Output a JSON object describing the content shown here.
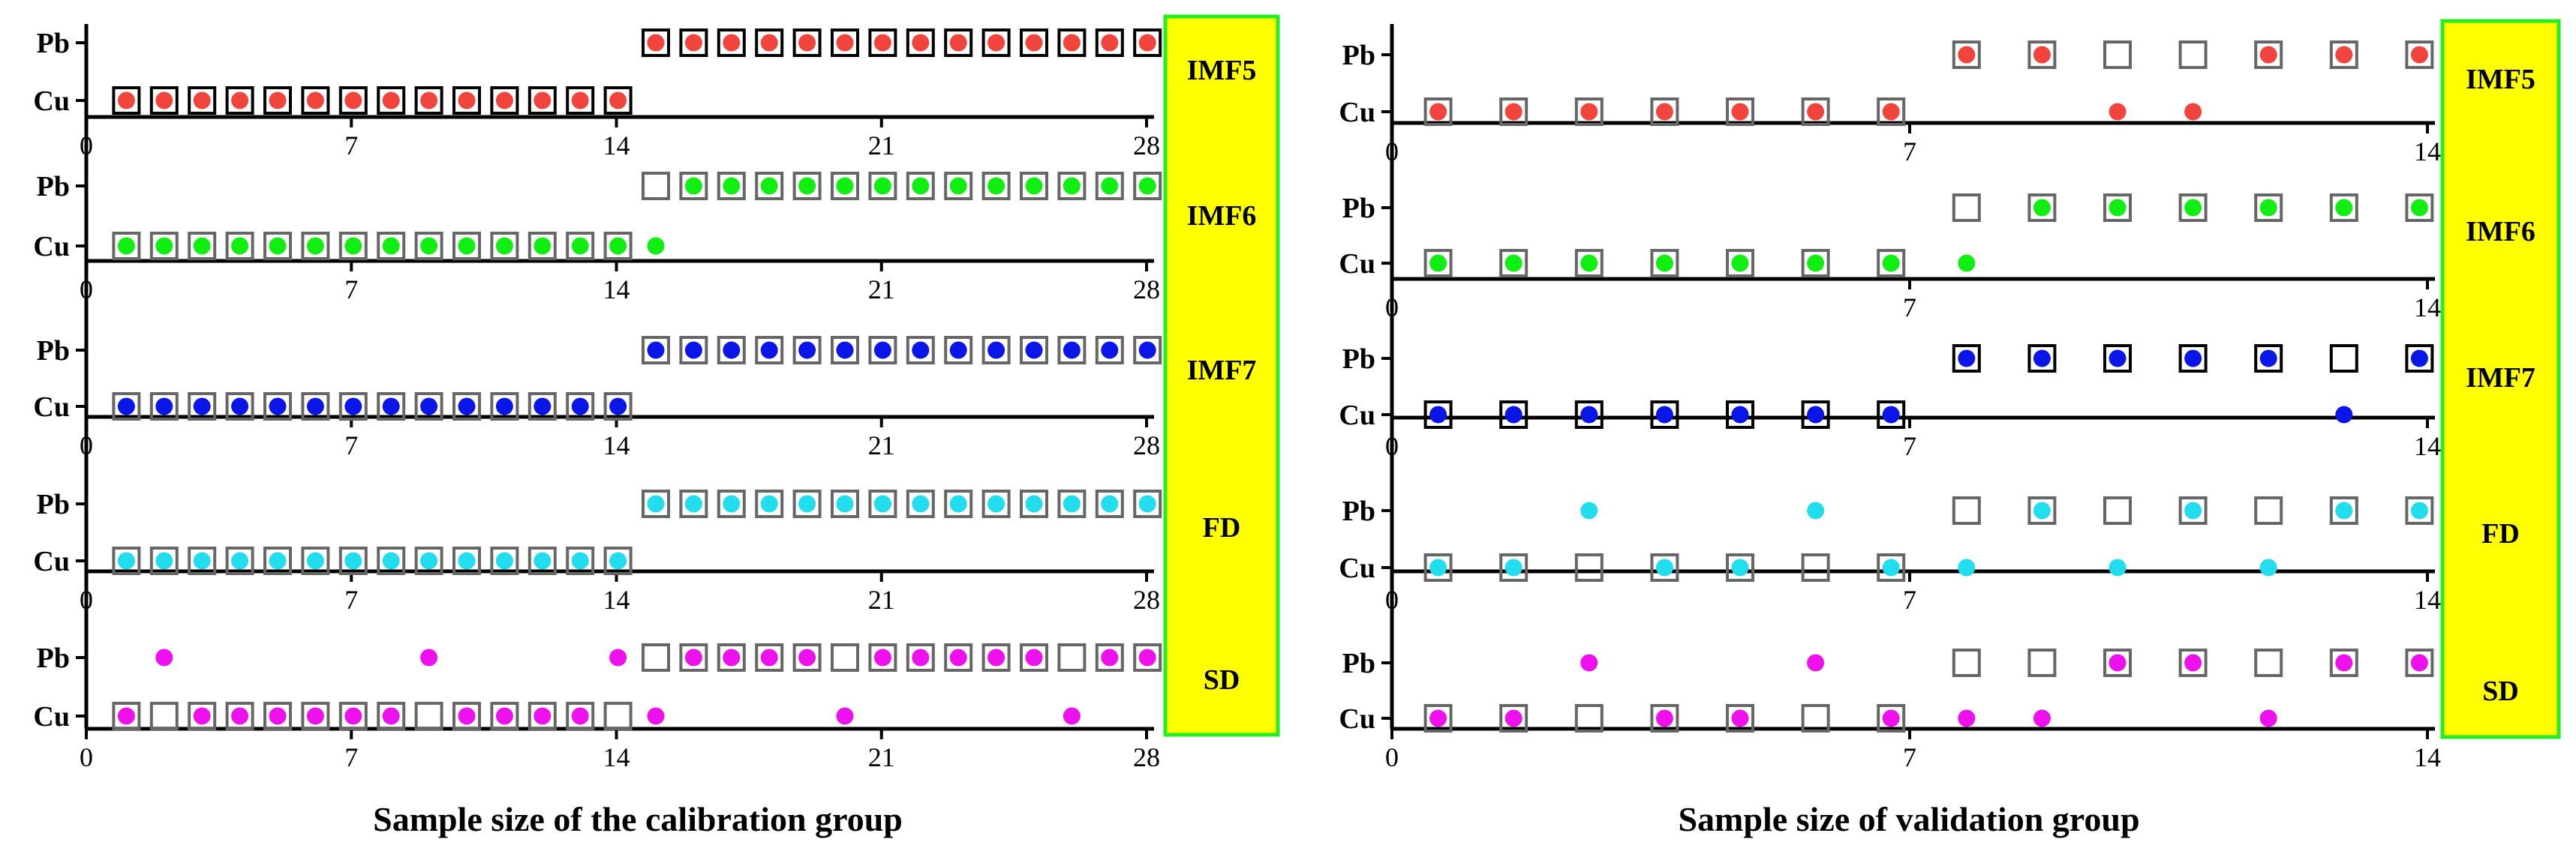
{
  "chart_data": [
    {
      "type": "scatter",
      "id": "calibration",
      "xlabel": "Sample size of the calibration group",
      "xlim": [
        0,
        28
      ],
      "xticks": [
        0,
        7,
        14,
        21,
        28
      ],
      "ycategories": [
        "Cu",
        "Pb"
      ],
      "legend_border_color": "#000000",
      "panels": [
        {
          "label": "IMF5",
          "color": "#f0443c",
          "marker_box_color": "#000000",
          "predicted": {
            "Cu": [
              1,
              2,
              3,
              4,
              5,
              6,
              7,
              8,
              9,
              10,
              11,
              12,
              13,
              14
            ],
            "Pb": [
              15,
              16,
              17,
              18,
              19,
              20,
              21,
              22,
              23,
              24,
              25,
              26,
              27,
              28
            ]
          },
          "actual": {
            "Cu": [
              1,
              2,
              3,
              4,
              5,
              6,
              7,
              8,
              9,
              10,
              11,
              12,
              13,
              14
            ],
            "Pb": [
              15,
              16,
              17,
              18,
              19,
              20,
              21,
              22,
              23,
              24,
              25,
              26,
              27,
              28
            ]
          }
        },
        {
          "label": "IMF6",
          "color": "#11ee11",
          "marker_box_color": "#666666",
          "predicted": {
            "Cu": [
              1,
              2,
              3,
              4,
              5,
              6,
              7,
              8,
              9,
              10,
              11,
              12,
              13,
              14,
              15
            ],
            "Pb": [
              16,
              17,
              18,
              19,
              20,
              21,
              22,
              23,
              24,
              25,
              26,
              27,
              28
            ]
          },
          "actual": {
            "Cu": [
              1,
              2,
              3,
              4,
              5,
              6,
              7,
              8,
              9,
              10,
              11,
              12,
              13,
              14
            ],
            "Pb": [
              15,
              16,
              17,
              18,
              19,
              20,
              21,
              22,
              23,
              24,
              25,
              26,
              27,
              28
            ]
          }
        },
        {
          "label": "IMF7",
          "color": "#0a16e8",
          "marker_box_color": "#666666",
          "predicted": {
            "Cu": [
              1,
              2,
              3,
              4,
              5,
              6,
              7,
              8,
              9,
              10,
              11,
              12,
              13,
              14
            ],
            "Pb": [
              15,
              16,
              17,
              18,
              19,
              20,
              21,
              22,
              23,
              24,
              25,
              26,
              27,
              28
            ]
          },
          "actual": {
            "Cu": [
              1,
              2,
              3,
              4,
              5,
              6,
              7,
              8,
              9,
              10,
              11,
              12,
              13,
              14
            ],
            "Pb": [
              15,
              16,
              17,
              18,
              19,
              20,
              21,
              22,
              23,
              24,
              25,
              26,
              27,
              28
            ]
          }
        },
        {
          "label": "FD",
          "color": "#22ddee",
          "marker_box_color": "#666666",
          "predicted": {
            "Cu": [
              1,
              2,
              3,
              4,
              5,
              6,
              7,
              8,
              9,
              10,
              11,
              12,
              13,
              14
            ],
            "Pb": [
              15,
              16,
              17,
              18,
              19,
              20,
              21,
              22,
              23,
              24,
              25,
              26,
              27,
              28
            ]
          },
          "actual": {
            "Cu": [
              1,
              2,
              3,
              4,
              5,
              6,
              7,
              8,
              9,
              10,
              11,
              12,
              13,
              14
            ],
            "Pb": [
              15,
              16,
              17,
              18,
              19,
              20,
              21,
              22,
              23,
              24,
              25,
              26,
              27,
              28
            ]
          }
        },
        {
          "label": "SD",
          "color": "#ee11ee",
          "marker_box_color": "#666666",
          "predicted": {
            "Cu": [
              1,
              3,
              4,
              5,
              6,
              7,
              8,
              10,
              11,
              12,
              13,
              15,
              20,
              26
            ],
            "Pb": [
              2,
              9,
              14,
              16,
              17,
              18,
              19,
              21,
              22,
              23,
              24,
              25,
              27,
              28
            ]
          },
          "actual": {
            "Cu": [
              1,
              2,
              3,
              4,
              5,
              6,
              7,
              8,
              9,
              10,
              11,
              12,
              13,
              14
            ],
            "Pb": [
              15,
              16,
              17,
              18,
              19,
              20,
              21,
              22,
              23,
              24,
              25,
              26,
              27,
              28
            ]
          }
        }
      ]
    },
    {
      "type": "scatter",
      "id": "validation",
      "xlabel": "Sample size of validation group",
      "xlim": [
        0,
        14
      ],
      "xticks": [
        0,
        7,
        14
      ],
      "ycategories": [
        "Cu",
        "Pb"
      ],
      "legend_border_color": "#000000",
      "panels": [
        {
          "label": "IMF5",
          "color": "#f0443c",
          "marker_box_color": "#666666",
          "predicted": {
            "Cu": [
              1,
              2,
              3,
              4,
              5,
              6,
              7,
              10,
              11
            ],
            "Pb": [
              8,
              9,
              12,
              13,
              14
            ]
          },
          "actual": {
            "Cu": [
              1,
              2,
              3,
              4,
              5,
              6,
              7
            ],
            "Pb": [
              8,
              9,
              10,
              11,
              12,
              13,
              14
            ]
          }
        },
        {
          "label": "IMF6",
          "color": "#11ee11",
          "marker_box_color": "#666666",
          "predicted": {
            "Cu": [
              1,
              2,
              3,
              4,
              5,
              6,
              7,
              8
            ],
            "Pb": [
              9,
              10,
              11,
              12,
              13,
              14
            ]
          },
          "actual": {
            "Cu": [
              1,
              2,
              3,
              4,
              5,
              6,
              7
            ],
            "Pb": [
              8,
              9,
              10,
              11,
              12,
              13,
              14
            ]
          }
        },
        {
          "label": "IMF7",
          "color": "#0a16e8",
          "marker_box_color": "#000000",
          "predicted": {
            "Cu": [
              1,
              2,
              3,
              4,
              5,
              6,
              7,
              13
            ],
            "Pb": [
              8,
              9,
              10,
              11,
              12,
              14
            ]
          },
          "actual": {
            "Cu": [
              1,
              2,
              3,
              4,
              5,
              6,
              7
            ],
            "Pb": [
              8,
              9,
              10,
              11,
              12,
              13,
              14
            ]
          }
        },
        {
          "label": "FD",
          "color": "#22ddee",
          "marker_box_color": "#666666",
          "predicted": {
            "Cu": [
              1,
              2,
              4,
              5,
              7,
              8,
              10,
              12
            ],
            "Pb": [
              3,
              6,
              9,
              11,
              13,
              14
            ]
          },
          "actual": {
            "Cu": [
              1,
              2,
              3,
              4,
              5,
              6,
              7
            ],
            "Pb": [
              8,
              9,
              10,
              11,
              12,
              13,
              14
            ]
          }
        },
        {
          "label": "SD",
          "color": "#ee11ee",
          "marker_box_color": "#666666",
          "predicted": {
            "Cu": [
              1,
              2,
              4,
              5,
              7,
              8,
              9,
              12
            ],
            "Pb": [
              3,
              6,
              10,
              11,
              13,
              14
            ]
          },
          "actual": {
            "Cu": [
              1,
              2,
              3,
              4,
              5,
              6,
              7
            ],
            "Pb": [
              8,
              9,
              10,
              11,
              12,
              13,
              14
            ]
          }
        }
      ]
    }
  ],
  "style": {
    "legend_fill": "#ffff00",
    "legend_border": "#22ee22",
    "axis_color": "#000000"
  }
}
